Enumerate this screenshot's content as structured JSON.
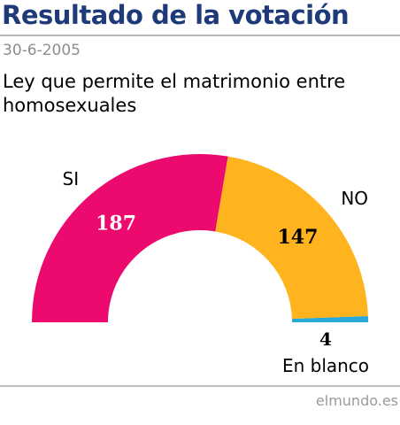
{
  "header": {
    "title": "Resultado de la votación",
    "date": "30-6-2005",
    "subtitle": "Ley que permite el matrimonio entre homosexuales"
  },
  "chart_data": {
    "type": "pie",
    "shape": "half-donut",
    "slices": [
      {
        "name": "SI",
        "value": 187,
        "color": "#ec0a6e"
      },
      {
        "name": "NO",
        "value": 147,
        "color": "#ffb41f"
      },
      {
        "name": "En blanco",
        "value": 4,
        "color": "#29a8d8"
      }
    ]
  },
  "footer": {
    "source": "elmundo.es"
  }
}
